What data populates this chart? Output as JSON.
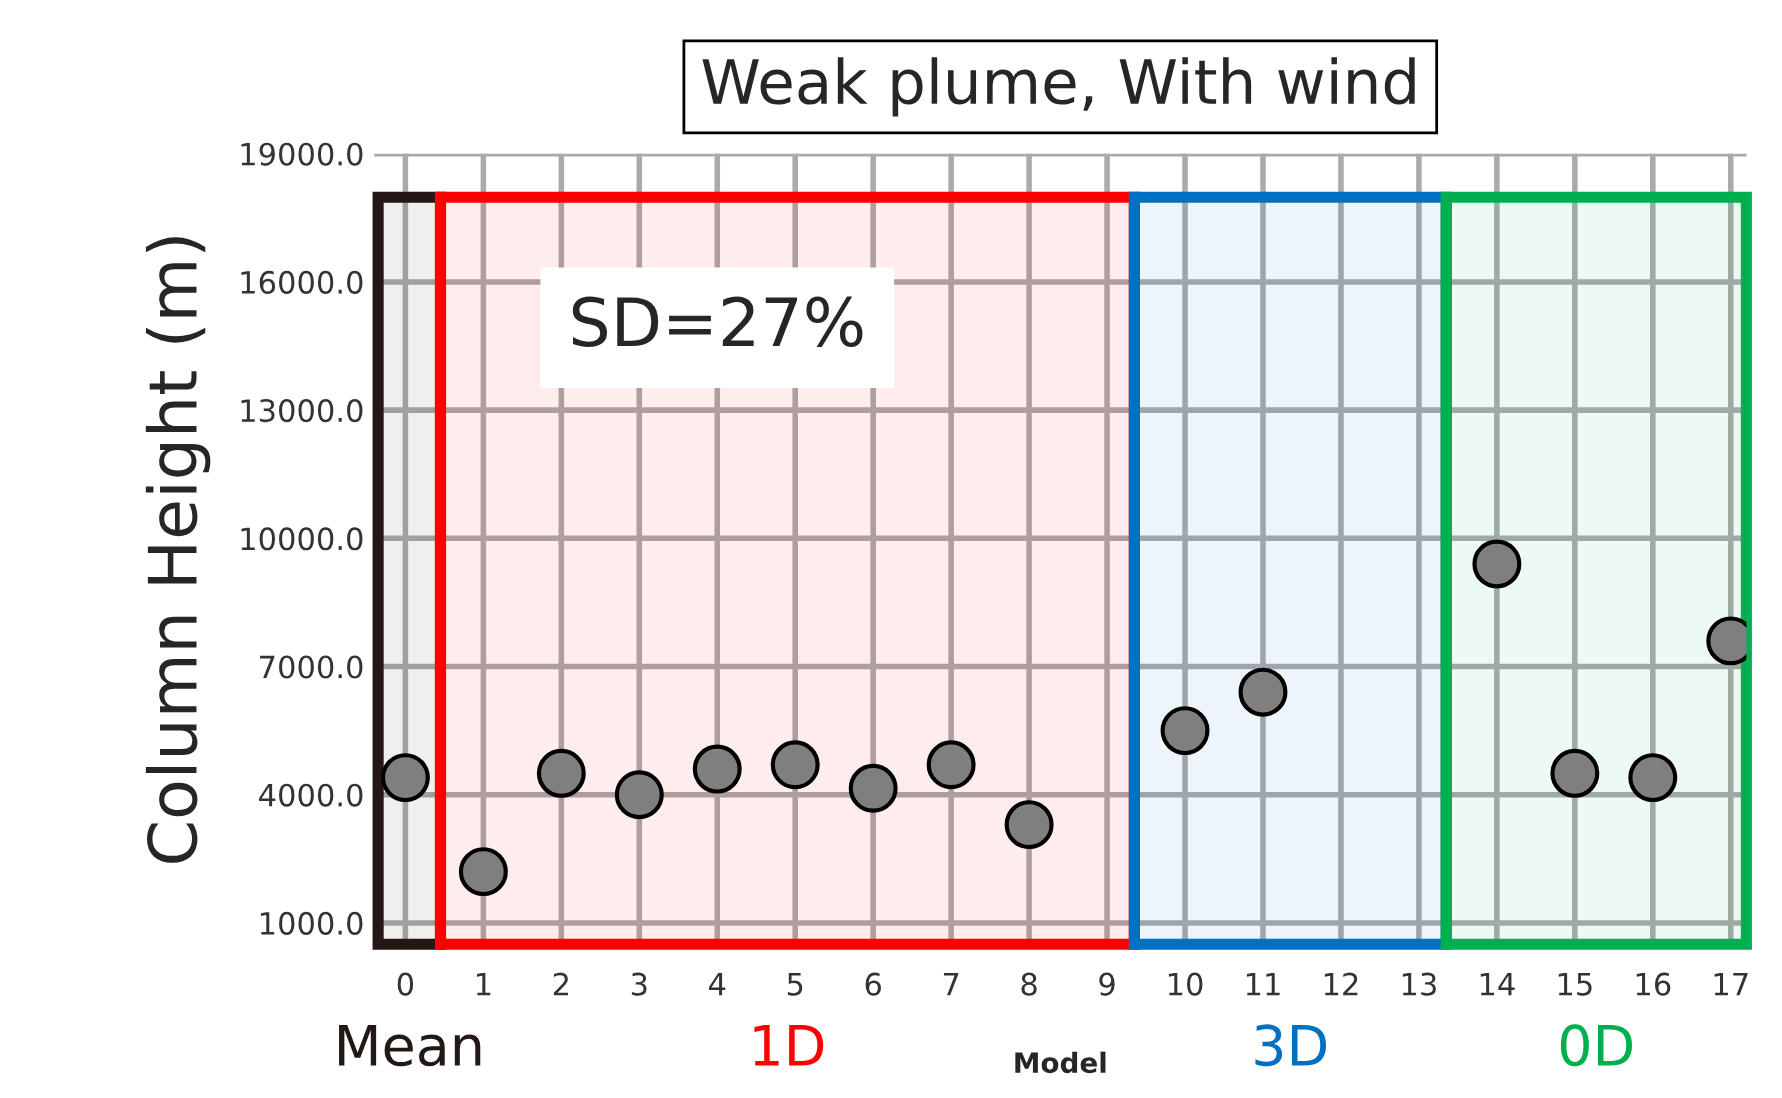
{
  "chart_data": {
    "type": "scatter",
    "title": "Weak plume, With wind",
    "xlabel": "Model",
    "ylabel": "Column Height (m)",
    "x": [
      0,
      1,
      2,
      3,
      4,
      5,
      6,
      7,
      8,
      10,
      11,
      14,
      15,
      16,
      17
    ],
    "series": [
      {
        "color": "#7f7f7f",
        "values": [
          4400,
          2200,
          4500,
          4000,
          4600,
          4700,
          4150,
          4700,
          3300,
          5500,
          6400,
          9400,
          4500,
          4400,
          7600
        ]
      }
    ],
    "marker": "circle",
    "grid": true,
    "xlim": [
      -0.4,
      17.2
    ],
    "xticks": [
      0,
      1,
      2,
      3,
      4,
      5,
      6,
      7,
      8,
      9,
      10,
      11,
      12,
      13,
      14,
      15,
      16,
      17
    ],
    "ylim": [
      500,
      19000
    ],
    "yticks": [
      {
        "value": 1000,
        "label": "1000.0"
      },
      {
        "value": 4000,
        "label": "4000.0"
      },
      {
        "value": 7000,
        "label": "7000.0"
      },
      {
        "value": 10000,
        "label": "10000.0"
      },
      {
        "value": 13000,
        "label": "13000.0"
      },
      {
        "value": 16000,
        "label": "16000.0"
      },
      {
        "value": 19000,
        "label": "19000.0"
      }
    ],
    "bands": [
      {
        "axis": "x",
        "from": -0.35,
        "to": 0.45,
        "label": "Mean",
        "color": "#231815"
      },
      {
        "axis": "x",
        "from": 0.45,
        "to": 9.35,
        "label": "1D",
        "color": "#ff0000"
      },
      {
        "axis": "x",
        "from": 9.35,
        "to": 13.35,
        "label": "3D",
        "color": "#0070c0"
      },
      {
        "axis": "x",
        "from": 13.35,
        "to": 17.2,
        "label": "0D",
        "color": "#00b050"
      }
    ],
    "annotations": [
      "SD=27%"
    ]
  }
}
